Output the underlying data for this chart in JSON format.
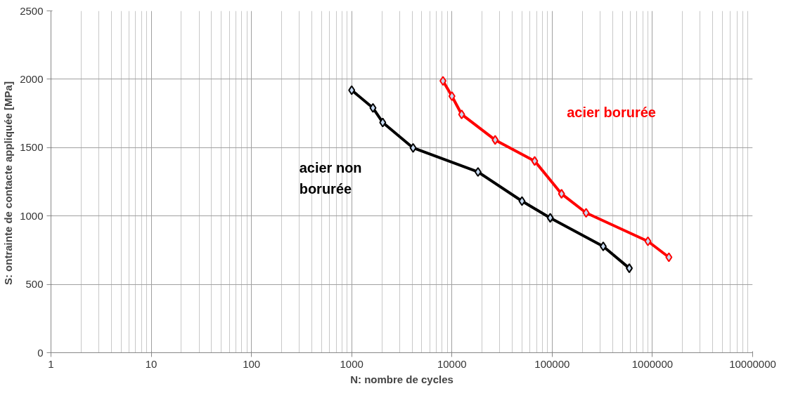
{
  "chart_data": {
    "type": "line",
    "xlabel": "N: nombre de cycles",
    "ylabel": "S: ontrainte de contacte appliquée  [MPa]",
    "log": "x",
    "grid": true,
    "marker": "diamond",
    "line_style": "solid",
    "xlim": [
      1,
      10000000
    ],
    "xticks": [
      1,
      10,
      100,
      1000,
      10000,
      100000,
      1000000,
      10000000
    ],
    "ylim": [
      0,
      2500
    ],
    "yticks": [
      0,
      500,
      1000,
      1500,
      2000,
      2500
    ],
    "series": [
      {
        "name": "acier non borurée",
        "color": "#000000",
        "x": [
          1000,
          1630,
          2040,
          4100,
          18200,
          50000,
          95700,
          323000,
          588000
        ],
        "values": [
          1920,
          1790,
          1684,
          1498,
          1322,
          1109,
          986,
          778,
          618
        ]
      },
      {
        "name": "acier borurée",
        "color": "#ff0000",
        "x": [
          8140,
          10000,
          12500,
          27000,
          66900,
          124000,
          218000,
          902000,
          1460000
        ],
        "values": [
          1988,
          1876,
          1743,
          1556,
          1402,
          1162,
          1023,
          815,
          698
        ]
      }
    ]
  }
}
